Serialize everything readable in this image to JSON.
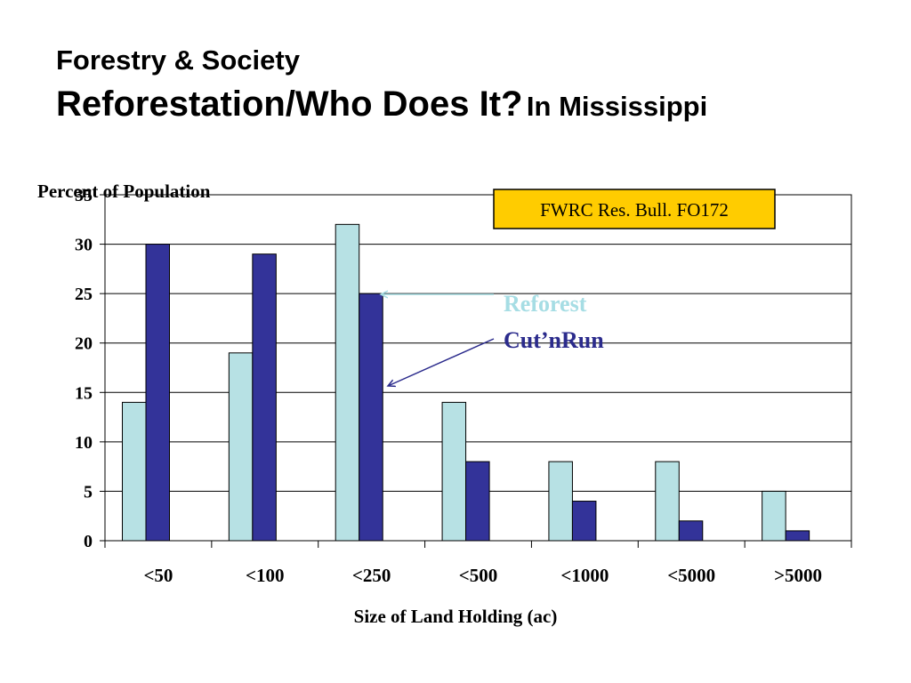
{
  "slide": {
    "title_line1": "Forestry & Society",
    "title_line2_main": "Reforestation/Who Does It?",
    "title_line2_sub": "In Mississippi"
  },
  "source_note": "FWRC Res. Bull. FO172",
  "colors": {
    "reforest": "#b7e1e4",
    "cutnrun": "#333399",
    "source_box": "#ffcc00",
    "reforest_label": "#a6dde4",
    "cutnrun_label": "#2b2b8c"
  },
  "chart_data": {
    "type": "bar",
    "ylabel": "Percent of Population",
    "xlabel": "Size of Land Holding (ac)",
    "categories": [
      "<50",
      "<100",
      "<250",
      "<500",
      "<1000",
      "<5000",
      ">5000"
    ],
    "series": [
      {
        "name": "Reforest",
        "values": [
          14,
          19,
          32,
          14,
          8,
          8,
          5
        ]
      },
      {
        "name": "Cut’nRun",
        "values": [
          30,
          29,
          25,
          8,
          4,
          2,
          1
        ]
      }
    ],
    "ylim": [
      0,
      35
    ],
    "yticks": [
      "0",
      "5",
      "10",
      "15",
      "20",
      "25",
      "30",
      "35"
    ],
    "grid": true,
    "legend": "arrows pointing to bars"
  }
}
